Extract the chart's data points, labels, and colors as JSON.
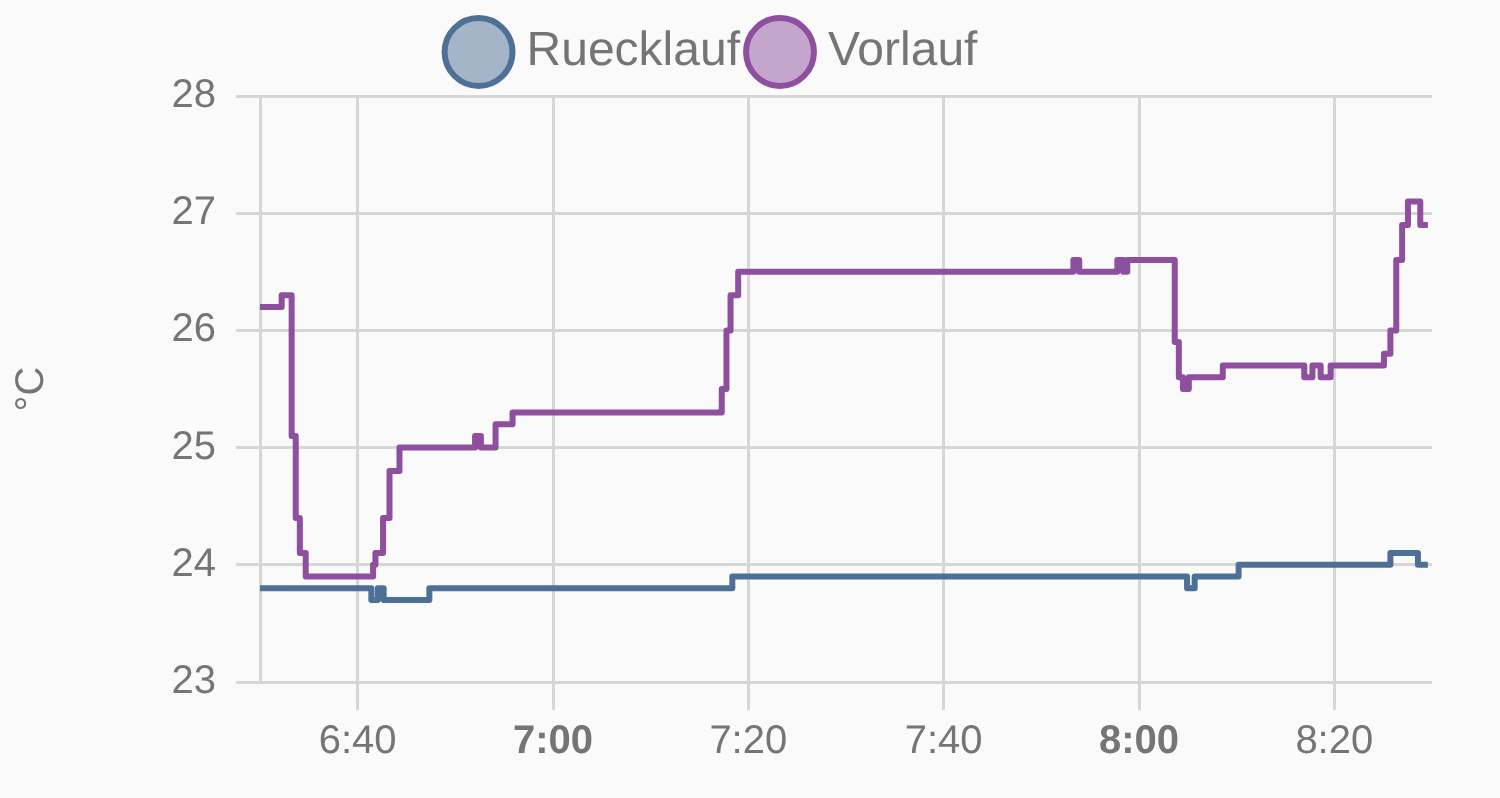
{
  "chart_data": {
    "type": "step",
    "ylabel": "°C",
    "legend": "top",
    "grid": true,
    "marker": "none",
    "xlim": [
      6.5,
      8.5
    ],
    "xticks": [
      {
        "value": 6.6667,
        "label": "6:40"
      },
      {
        "value": 7,
        "label": "7:00"
      },
      {
        "value": 7.3333,
        "label": "7:20"
      },
      {
        "value": 7.6667,
        "label": "7:40"
      },
      {
        "value": 8,
        "label": "8:00"
      },
      {
        "value": 8.3333,
        "label": "8:20"
      }
    ],
    "ylim": [
      23,
      28
    ],
    "yticks": [
      23,
      24,
      25,
      26,
      27,
      28
    ],
    "series": [
      {
        "name": "Ruecklauf",
        "color": "#4e6f96",
        "x": [
          6.5,
          6.69,
          6.701,
          6.711,
          6.789,
          7.306,
          8.082,
          8.095,
          8.17,
          8.429,
          8.476,
          8.493
        ],
        "values": [
          23.8,
          23.7,
          23.8,
          23.7,
          23.8,
          23.9,
          23.8,
          23.9,
          24.0,
          24.1,
          24.0,
          24.0
        ]
      },
      {
        "name": "Vorlauf",
        "color": "#8e4f9e",
        "x": [
          6.5,
          6.537,
          6.554,
          6.561,
          6.568,
          6.578,
          6.585,
          6.693,
          6.697,
          6.71,
          6.721,
          6.738,
          6.761,
          6.867,
          6.877,
          6.902,
          6.931,
          7.288,
          7.296,
          7.303,
          7.316,
          7.888,
          7.898,
          7.963,
          7.973,
          7.98,
          8.017,
          8.061,
          8.068,
          8.075,
          8.085,
          8.143,
          8.252,
          8.282,
          8.296,
          8.31,
          8.327,
          8.418,
          8.429,
          8.439,
          8.449,
          8.459,
          8.48,
          8.493
        ],
        "values": [
          26.2,
          26.3,
          25.1,
          24.4,
          24.1,
          23.9,
          23.9,
          24.0,
          24.1,
          24.4,
          24.8,
          25.0,
          25.0,
          25.1,
          25.0,
          25.2,
          25.3,
          25.5,
          26.0,
          26.3,
          26.5,
          26.6,
          26.5,
          26.6,
          26.5,
          26.6,
          26.6,
          25.9,
          25.6,
          25.5,
          25.6,
          25.7,
          25.7,
          25.6,
          25.7,
          25.6,
          25.7,
          25.8,
          26.0,
          26.6,
          26.9,
          27.1,
          26.9,
          26.9
        ]
      }
    ]
  }
}
